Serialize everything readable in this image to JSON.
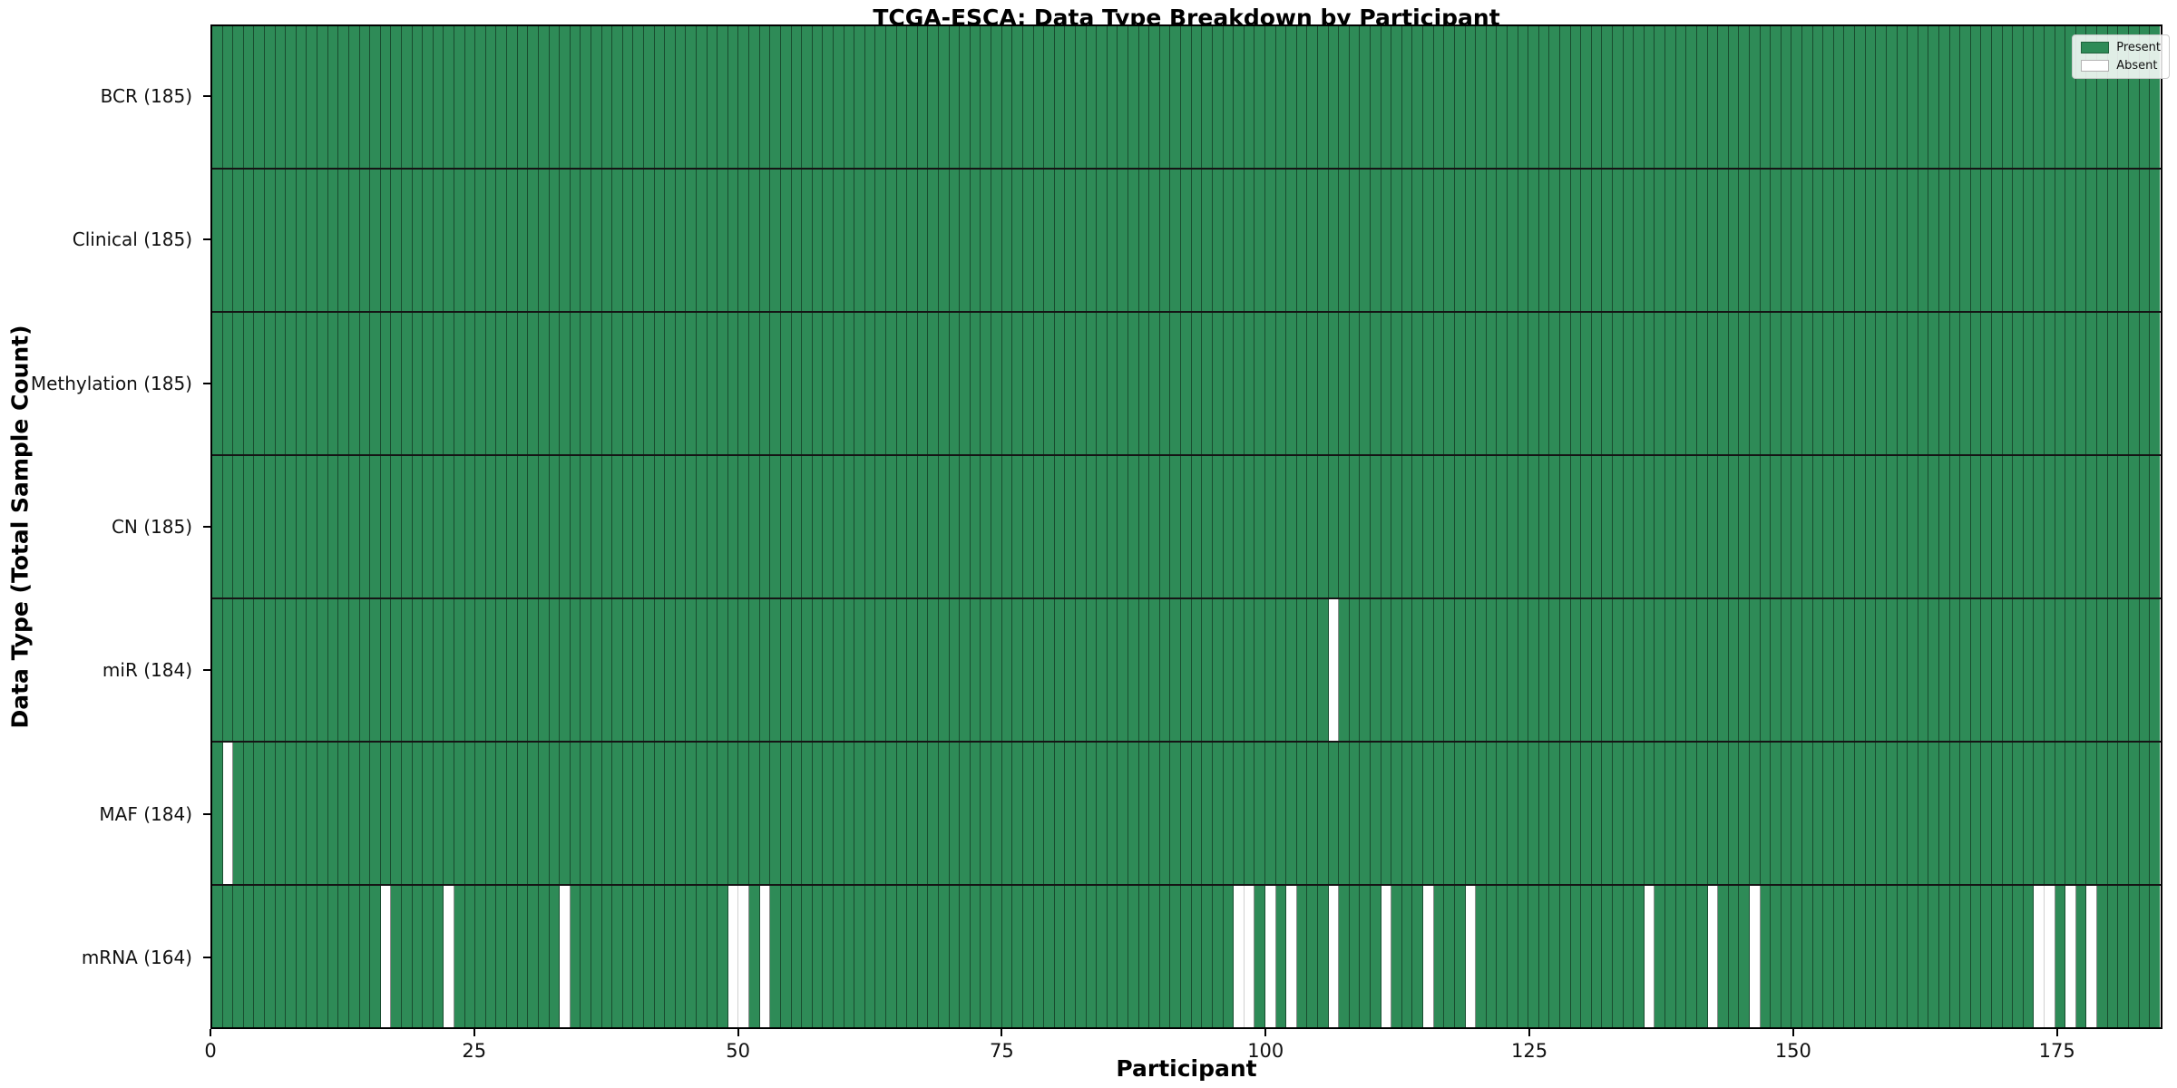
{
  "chart_data": {
    "type": "heatmap",
    "title": "TCGA-ESCA: Data Type Breakdown by Participant",
    "xlabel": "Participant",
    "ylabel": "Data Type (Total Sample Count)",
    "n_participants": 185,
    "x_ticks": [
      0,
      25,
      50,
      75,
      100,
      125,
      150,
      175
    ],
    "legend": [
      {
        "label": "Present",
        "color": "#2e8b57"
      },
      {
        "label": "Absent",
        "color": "#ffffff"
      }
    ],
    "legend_position": "upper right",
    "grid": false,
    "colors": {
      "present": "#2e8b57",
      "absent": "#ffffff",
      "edge_strong": "rgba(0,0,0,0.45)",
      "edge_faint": "rgba(0,0,0,0.18)",
      "row_separator": "#151515"
    },
    "rows": [
      {
        "name": "BCR",
        "label": "BCR (185)",
        "present_count": 185,
        "absent_participants": []
      },
      {
        "name": "Clinical",
        "label": "Clinical (185)",
        "present_count": 185,
        "absent_participants": []
      },
      {
        "name": "Methylation",
        "label": "Methylation (185)",
        "present_count": 185,
        "absent_participants": []
      },
      {
        "name": "CN",
        "label": "CN (185)",
        "present_count": 185,
        "absent_participants": []
      },
      {
        "name": "miR",
        "label": "miR (184)",
        "present_count": 184,
        "absent_participants": [
          106
        ]
      },
      {
        "name": "MAF",
        "label": "MAF (184)",
        "present_count": 184,
        "absent_participants": [
          1
        ]
      },
      {
        "name": "mRNA",
        "label": "mRNA (164)",
        "present_count": 164,
        "absent_participants": [
          16,
          22,
          33,
          49,
          50,
          52,
          97,
          98,
          100,
          102,
          106,
          111,
          115,
          119,
          136,
          142,
          146,
          173,
          174,
          176,
          178
        ]
      }
    ]
  }
}
